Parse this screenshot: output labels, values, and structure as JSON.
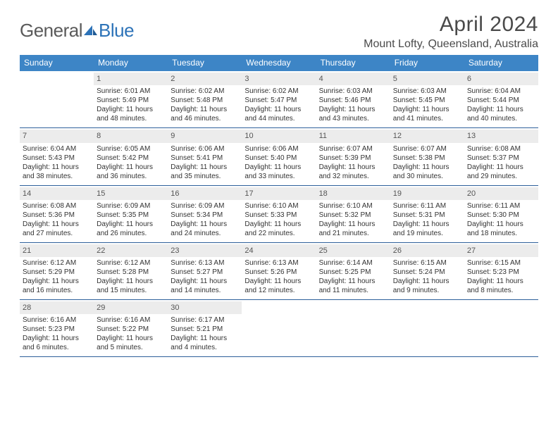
{
  "logo": {
    "general": "General",
    "blue": "Blue"
  },
  "title": "April 2024",
  "location": "Mount Lofty, Queensland, Australia",
  "colors": {
    "header_bg": "#3d85c6",
    "header_text": "#ffffff",
    "row_divider": "#2d5f9a",
    "daynum_bg": "#ececec",
    "daynum_text": "#555555",
    "body_text": "#333333",
    "title_text": "#4a4a4a",
    "logo_gray": "#5a5a5a",
    "logo_blue": "#2d73b8",
    "page_bg": "#ffffff"
  },
  "typography": {
    "title_fontsize": 30,
    "location_fontsize": 16,
    "dow_fontsize": 12,
    "daynum_fontsize": 11,
    "cell_fontsize": 10,
    "font_family": "Arial"
  },
  "days_of_week": [
    "Sunday",
    "Monday",
    "Tuesday",
    "Wednesday",
    "Thursday",
    "Friday",
    "Saturday"
  ],
  "weeks": [
    [
      null,
      {
        "n": "1",
        "sunrise": "Sunrise: 6:01 AM",
        "sunset": "Sunset: 5:49 PM",
        "daylight": "Daylight: 11 hours and 48 minutes."
      },
      {
        "n": "2",
        "sunrise": "Sunrise: 6:02 AM",
        "sunset": "Sunset: 5:48 PM",
        "daylight": "Daylight: 11 hours and 46 minutes."
      },
      {
        "n": "3",
        "sunrise": "Sunrise: 6:02 AM",
        "sunset": "Sunset: 5:47 PM",
        "daylight": "Daylight: 11 hours and 44 minutes."
      },
      {
        "n": "4",
        "sunrise": "Sunrise: 6:03 AM",
        "sunset": "Sunset: 5:46 PM",
        "daylight": "Daylight: 11 hours and 43 minutes."
      },
      {
        "n": "5",
        "sunrise": "Sunrise: 6:03 AM",
        "sunset": "Sunset: 5:45 PM",
        "daylight": "Daylight: 11 hours and 41 minutes."
      },
      {
        "n": "6",
        "sunrise": "Sunrise: 6:04 AM",
        "sunset": "Sunset: 5:44 PM",
        "daylight": "Daylight: 11 hours and 40 minutes."
      }
    ],
    [
      {
        "n": "7",
        "sunrise": "Sunrise: 6:04 AM",
        "sunset": "Sunset: 5:43 PM",
        "daylight": "Daylight: 11 hours and 38 minutes."
      },
      {
        "n": "8",
        "sunrise": "Sunrise: 6:05 AM",
        "sunset": "Sunset: 5:42 PM",
        "daylight": "Daylight: 11 hours and 36 minutes."
      },
      {
        "n": "9",
        "sunrise": "Sunrise: 6:06 AM",
        "sunset": "Sunset: 5:41 PM",
        "daylight": "Daylight: 11 hours and 35 minutes."
      },
      {
        "n": "10",
        "sunrise": "Sunrise: 6:06 AM",
        "sunset": "Sunset: 5:40 PM",
        "daylight": "Daylight: 11 hours and 33 minutes."
      },
      {
        "n": "11",
        "sunrise": "Sunrise: 6:07 AM",
        "sunset": "Sunset: 5:39 PM",
        "daylight": "Daylight: 11 hours and 32 minutes."
      },
      {
        "n": "12",
        "sunrise": "Sunrise: 6:07 AM",
        "sunset": "Sunset: 5:38 PM",
        "daylight": "Daylight: 11 hours and 30 minutes."
      },
      {
        "n": "13",
        "sunrise": "Sunrise: 6:08 AM",
        "sunset": "Sunset: 5:37 PM",
        "daylight": "Daylight: 11 hours and 29 minutes."
      }
    ],
    [
      {
        "n": "14",
        "sunrise": "Sunrise: 6:08 AM",
        "sunset": "Sunset: 5:36 PM",
        "daylight": "Daylight: 11 hours and 27 minutes."
      },
      {
        "n": "15",
        "sunrise": "Sunrise: 6:09 AM",
        "sunset": "Sunset: 5:35 PM",
        "daylight": "Daylight: 11 hours and 26 minutes."
      },
      {
        "n": "16",
        "sunrise": "Sunrise: 6:09 AM",
        "sunset": "Sunset: 5:34 PM",
        "daylight": "Daylight: 11 hours and 24 minutes."
      },
      {
        "n": "17",
        "sunrise": "Sunrise: 6:10 AM",
        "sunset": "Sunset: 5:33 PM",
        "daylight": "Daylight: 11 hours and 22 minutes."
      },
      {
        "n": "18",
        "sunrise": "Sunrise: 6:10 AM",
        "sunset": "Sunset: 5:32 PM",
        "daylight": "Daylight: 11 hours and 21 minutes."
      },
      {
        "n": "19",
        "sunrise": "Sunrise: 6:11 AM",
        "sunset": "Sunset: 5:31 PM",
        "daylight": "Daylight: 11 hours and 19 minutes."
      },
      {
        "n": "20",
        "sunrise": "Sunrise: 6:11 AM",
        "sunset": "Sunset: 5:30 PM",
        "daylight": "Daylight: 11 hours and 18 minutes."
      }
    ],
    [
      {
        "n": "21",
        "sunrise": "Sunrise: 6:12 AM",
        "sunset": "Sunset: 5:29 PM",
        "daylight": "Daylight: 11 hours and 16 minutes."
      },
      {
        "n": "22",
        "sunrise": "Sunrise: 6:12 AM",
        "sunset": "Sunset: 5:28 PM",
        "daylight": "Daylight: 11 hours and 15 minutes."
      },
      {
        "n": "23",
        "sunrise": "Sunrise: 6:13 AM",
        "sunset": "Sunset: 5:27 PM",
        "daylight": "Daylight: 11 hours and 14 minutes."
      },
      {
        "n": "24",
        "sunrise": "Sunrise: 6:13 AM",
        "sunset": "Sunset: 5:26 PM",
        "daylight": "Daylight: 11 hours and 12 minutes."
      },
      {
        "n": "25",
        "sunrise": "Sunrise: 6:14 AM",
        "sunset": "Sunset: 5:25 PM",
        "daylight": "Daylight: 11 hours and 11 minutes."
      },
      {
        "n": "26",
        "sunrise": "Sunrise: 6:15 AM",
        "sunset": "Sunset: 5:24 PM",
        "daylight": "Daylight: 11 hours and 9 minutes."
      },
      {
        "n": "27",
        "sunrise": "Sunrise: 6:15 AM",
        "sunset": "Sunset: 5:23 PM",
        "daylight": "Daylight: 11 hours and 8 minutes."
      }
    ],
    [
      {
        "n": "28",
        "sunrise": "Sunrise: 6:16 AM",
        "sunset": "Sunset: 5:23 PM",
        "daylight": "Daylight: 11 hours and 6 minutes."
      },
      {
        "n": "29",
        "sunrise": "Sunrise: 6:16 AM",
        "sunset": "Sunset: 5:22 PM",
        "daylight": "Daylight: 11 hours and 5 minutes."
      },
      {
        "n": "30",
        "sunrise": "Sunrise: 6:17 AM",
        "sunset": "Sunset: 5:21 PM",
        "daylight": "Daylight: 11 hours and 4 minutes."
      },
      null,
      null,
      null,
      null
    ]
  ]
}
